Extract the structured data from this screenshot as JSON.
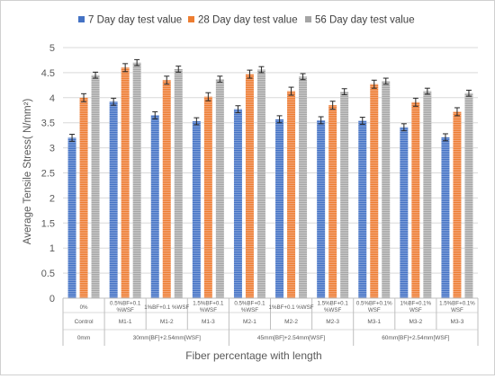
{
  "chart_data": {
    "type": "bar",
    "title": "",
    "ylabel": "Average Tensile Stress( N/mm²)",
    "xlabel": "Fiber percentage with length",
    "ylim": [
      0,
      5
    ],
    "yticks": [
      "0",
      "0.5",
      "1",
      "1.5",
      "2",
      "2.5",
      "3",
      "3.5",
      "4",
      "4.5",
      "5"
    ],
    "grid": true,
    "legend_position": "top",
    "error_bars": true,
    "categories": [
      [
        "0%"
      ],
      [
        "0.5%BF+0.1",
        "%WSF"
      ],
      [
        "1%BF+0.1 %WSF"
      ],
      [
        "1.5%BF+0.1",
        "%WSF"
      ],
      [
        "0.5%BF+0.1",
        "%WSF"
      ],
      [
        "1%BF+0.1 %WSF"
      ],
      [
        "1.5%BF+0.1",
        "%WSF"
      ],
      [
        "0.5%BF+0.1%",
        "WSF"
      ],
      [
        "1%BF+0.1%",
        "WSF"
      ],
      [
        "1.5%BF+0.1%",
        "WSF"
      ]
    ],
    "mix_ids": [
      "Control",
      "M1-1",
      "M1-2",
      "M1-3",
      "M2-1",
      "M2-2",
      "M2-3",
      "M3-1",
      "M3-2",
      "M3-3"
    ],
    "groups": [
      {
        "label": "0mm",
        "span": [
          0,
          0
        ]
      },
      {
        "label": "30mm[BF]+2.54mm[WSF]",
        "span": [
          1,
          3
        ]
      },
      {
        "label": "45mm[BF]+2.54mm[WSF]",
        "span": [
          4,
          6
        ]
      },
      {
        "label": "60mm[BF]+2.54mm[WSF]",
        "span": [
          7,
          9
        ]
      }
    ],
    "series": [
      {
        "name": "7 Day day test value",
        "color": "#4472c4",
        "values": [
          3.2,
          3.92,
          3.65,
          3.53,
          3.77,
          3.57,
          3.55,
          3.54,
          3.41,
          3.21
        ],
        "errors": [
          0.07,
          0.07,
          0.07,
          0.07,
          0.07,
          0.07,
          0.07,
          0.07,
          0.07,
          0.07
        ]
      },
      {
        "name": "28 Day day test value",
        "color": "#ed7d31",
        "values": [
          4.0,
          4.6,
          4.35,
          4.02,
          4.47,
          4.13,
          3.85,
          4.27,
          3.91,
          3.72
        ],
        "errors": [
          0.08,
          0.08,
          0.08,
          0.08,
          0.08,
          0.08,
          0.08,
          0.08,
          0.08,
          0.08
        ]
      },
      {
        "name": "56 Day day test value",
        "color": "#a5a5a5",
        "values": [
          4.45,
          4.7,
          4.57,
          4.37,
          4.56,
          4.42,
          4.12,
          4.33,
          4.13,
          4.09
        ],
        "errors": [
          0.06,
          0.06,
          0.06,
          0.06,
          0.06,
          0.06,
          0.06,
          0.06,
          0.06,
          0.06
        ]
      }
    ]
  }
}
